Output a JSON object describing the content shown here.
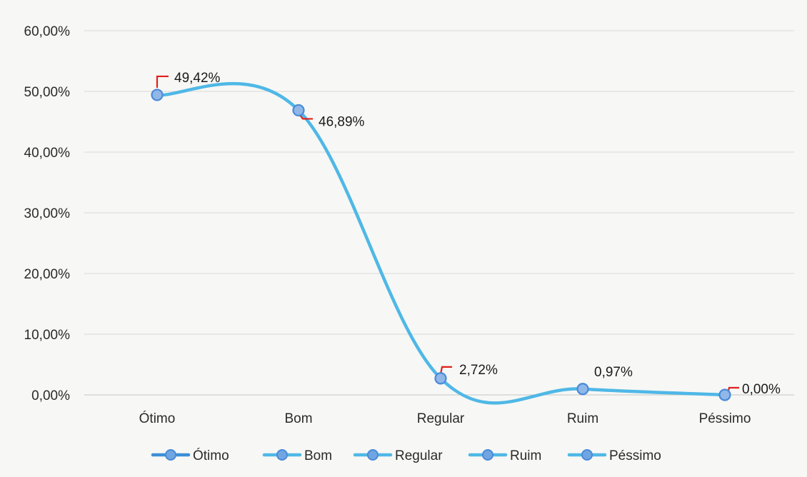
{
  "chart_data": {
    "type": "line",
    "categories": [
      "Ótimo",
      "Bom",
      "Regular",
      "Ruim",
      "Péssimo"
    ],
    "values": [
      49.42,
      46.89,
      2.72,
      0.97,
      0.0
    ],
    "data_labels": [
      "49,42%",
      "46,89%",
      "2,72%",
      "0,97%",
      "0,00%"
    ],
    "y_ticks": [
      "0,00%",
      "10,00%",
      "20,00%",
      "30,00%",
      "40,00%",
      "50,00%",
      "60,00%"
    ],
    "ylim": [
      0,
      60
    ],
    "grid": true,
    "legend_position": "bottom",
    "legend": [
      "Ótimo",
      "Bom",
      "Regular",
      "Ruim",
      "Péssimo"
    ],
    "line_color": "#4fb8e6",
    "marker_color": "#4a8ad8",
    "leader_line_color": "#e0201a"
  }
}
